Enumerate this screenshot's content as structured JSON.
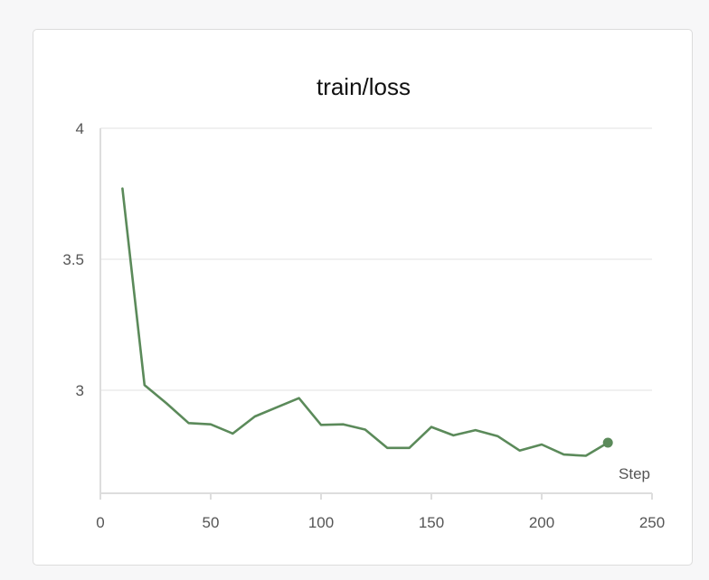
{
  "chart_data": {
    "type": "line",
    "title": "train/loss",
    "xlabel": "Step",
    "ylabel": "",
    "xlim": [
      0,
      250
    ],
    "ylim": [
      2.6,
      4.0
    ],
    "xticks": [
      0,
      50,
      100,
      150,
      200,
      250
    ],
    "yticks": [
      3,
      3.5,
      4
    ],
    "ytick_labels": [
      "3",
      "3.5",
      "4"
    ],
    "grid": true,
    "line_color": "#5b8a5a",
    "series": [
      {
        "x": [
          10,
          20,
          30,
          40,
          50,
          60,
          70,
          80,
          90,
          100,
          110,
          120,
          130,
          140,
          150,
          160,
          170,
          180,
          190,
          200,
          210,
          220,
          230
        ],
        "y": [
          3.77,
          3.02,
          2.95,
          2.875,
          2.87,
          2.835,
          2.9,
          2.935,
          2.97,
          2.868,
          2.87,
          2.85,
          2.78,
          2.78,
          2.86,
          2.828,
          2.848,
          2.825,
          2.77,
          2.793,
          2.755,
          2.75,
          2.8
        ]
      }
    ]
  }
}
